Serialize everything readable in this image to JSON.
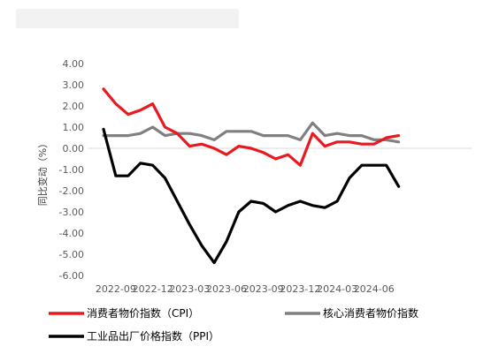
{
  "chart_data": {
    "type": "line",
    "ylabel": "同比变动（%）",
    "ylim": [
      -6,
      4
    ],
    "y_ticks": [
      "4.00",
      "3.00",
      "2.00",
      "1.00",
      "0.00",
      "-1.00",
      "-2.00",
      "-3.00",
      "-4.00",
      "-5.00",
      "-6.00"
    ],
    "x_ticks": [
      "2022-09",
      "2022-12",
      "2023-03",
      "2023-06",
      "2023-09",
      "2023-12",
      "2024-03",
      "2024-06"
    ],
    "x": [
      "2022-08",
      "2022-09",
      "2022-10",
      "2022-11",
      "2022-12",
      "2023-01",
      "2023-02",
      "2023-03",
      "2023-04",
      "2023-05",
      "2023-06",
      "2023-07",
      "2023-08",
      "2023-09",
      "2023-10",
      "2023-11",
      "2023-12",
      "2024-01",
      "2024-02",
      "2024-03",
      "2024-04",
      "2024-05",
      "2024-06",
      "2024-07",
      "2024-08"
    ],
    "series": [
      {
        "name": "消费者物价指数（CPI）",
        "color": "#e8191f",
        "values": [
          2.8,
          2.1,
          1.6,
          1.8,
          2.1,
          1.0,
          0.7,
          0.1,
          0.2,
          0.0,
          -0.3,
          0.1,
          0.0,
          -0.2,
          -0.5,
          -0.3,
          -0.8,
          0.7,
          0.1,
          0.3,
          0.3,
          0.2,
          0.2,
          0.5,
          0.6
        ]
      },
      {
        "name": "核心消费者物价指数",
        "color": "#808080",
        "values": [
          0.6,
          0.6,
          0.6,
          0.7,
          1.0,
          0.6,
          0.7,
          0.7,
          0.6,
          0.4,
          0.8,
          0.8,
          0.8,
          0.6,
          0.6,
          0.6,
          0.4,
          1.2,
          0.6,
          0.7,
          0.6,
          0.6,
          0.4,
          0.4,
          0.3
        ]
      },
      {
        "name": "工业品出厂价格指数（PPI）",
        "color": "#000000",
        "values": [
          0.9,
          -1.3,
          -1.3,
          -0.7,
          -0.8,
          -1.4,
          -2.5,
          -3.6,
          -4.6,
          -5.4,
          -4.4,
          -3.0,
          -2.5,
          -2.6,
          -3.0,
          -2.7,
          -2.5,
          -2.7,
          -2.8,
          -2.5,
          -1.4,
          -0.8,
          -0.8,
          -0.8,
          -1.8
        ]
      }
    ],
    "legend_position": "bottom",
    "grid": false
  }
}
